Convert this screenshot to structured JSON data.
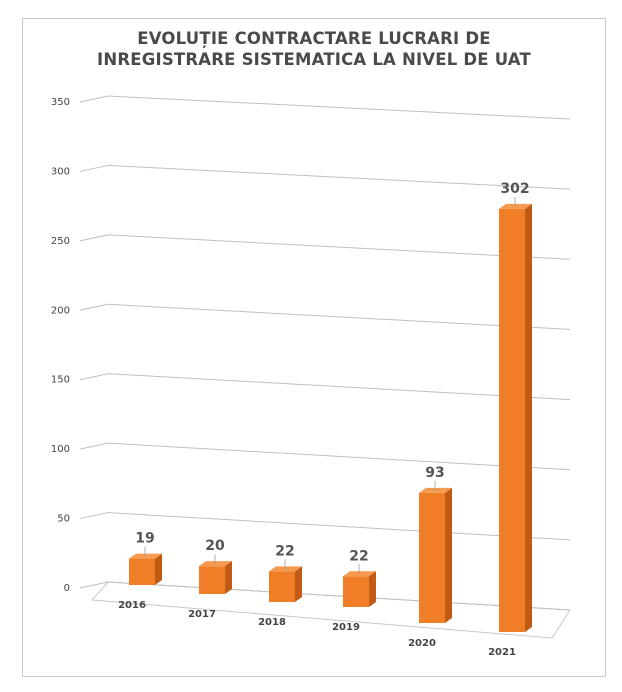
{
  "chart_data": {
    "type": "bar",
    "title": [
      "EVOLUȚIE CONTRACTARE LUCRARI DE",
      "INREGISTRARE SISTEMATICA LA NIVEL DE UAT"
    ],
    "categories": [
      "2016",
      "2017",
      "2018",
      "2019",
      "2020",
      "2021"
    ],
    "values": [
      19,
      20,
      22,
      22,
      93,
      302
    ],
    "ylim": [
      0,
      350
    ],
    "yticks": [
      0,
      50,
      100,
      150,
      200,
      250,
      300,
      350
    ],
    "grid": true,
    "legend": "none",
    "bar_color": "#F07E26",
    "bar_side_color": "#C15A12",
    "bar_top_color": "#F59A4E",
    "data_labels": [
      "19",
      "20",
      "22",
      "22",
      "93",
      "302"
    ]
  }
}
